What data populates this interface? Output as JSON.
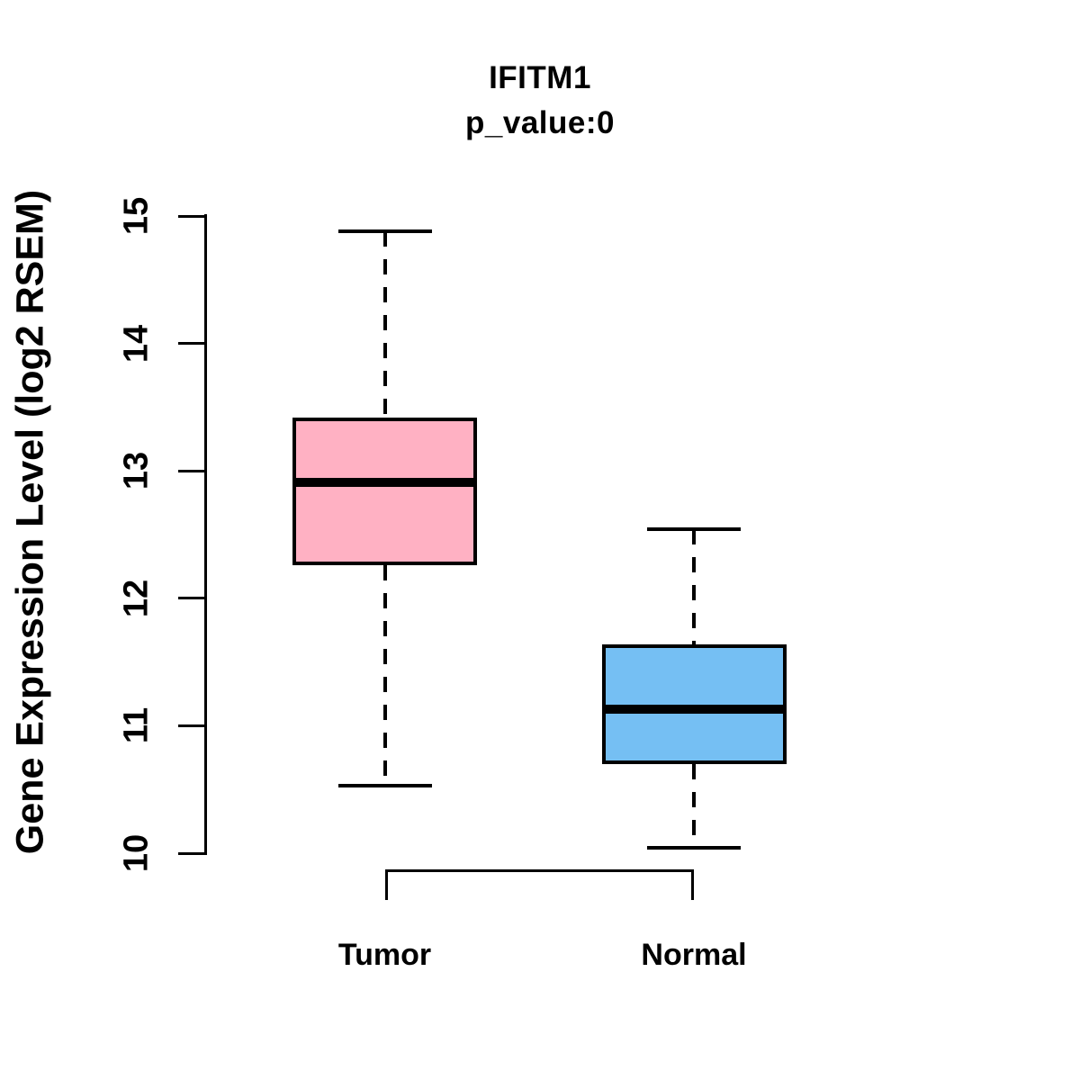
{
  "page": {
    "background": "#FFFFFF",
    "text_color": "#000000"
  },
  "chart_data": {
    "type": "boxplot",
    "title": "IFITM1",
    "subtitle": "p_value:0",
    "ylabel": "Gene Expression Level (log2 RSEM)",
    "xlabel": "",
    "ylim": [
      10,
      15
    ],
    "yticks": [
      "10",
      "11",
      "12",
      "13",
      "14",
      "15"
    ],
    "grid": false,
    "legend": "none",
    "line_color": "#000000",
    "categories": [
      "Tumor",
      "Normal"
    ],
    "series": [
      {
        "name": "Tumor",
        "box_color": "#FFB1C3",
        "whisker_low": 10.53,
        "q1": 12.26,
        "median": 12.91,
        "q3": 13.42,
        "whisker_high": 14.88
      },
      {
        "name": "Normal",
        "box_color": "#75BFF3",
        "whisker_low": 10.04,
        "q1": 10.7,
        "median": 11.13,
        "q3": 11.64,
        "whisker_high": 12.54
      }
    ],
    "comparison_bracket": {
      "between": [
        "Tumor",
        "Normal"
      ],
      "label": ""
    }
  }
}
